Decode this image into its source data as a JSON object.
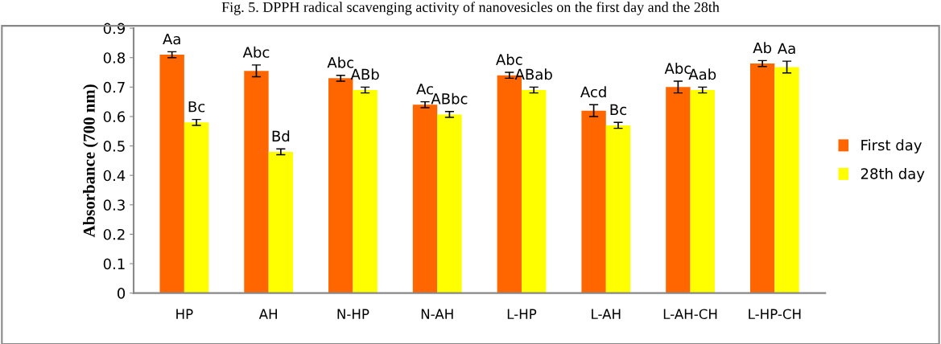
{
  "chart_data": {
    "type": "bar",
    "title": "Fig. 5. DPPH radical scavenging activity of nanovesicles on the first day and the 28th",
    "ylabel": "Absorbance (700 nm)",
    "categories": [
      "HP",
      "AH",
      "N-HP",
      "N-AH",
      "L-HP",
      "L-AH",
      "L-AH-CH",
      "L-HP-CH"
    ],
    "series": [
      {
        "name": "First day",
        "color": "#ff6600",
        "values": [
          0.81,
          0.755,
          0.73,
          0.64,
          0.74,
          0.62,
          0.7,
          0.78
        ],
        "errors": [
          0.01,
          0.02,
          0.01,
          0.01,
          0.01,
          0.02,
          0.02,
          0.01
        ],
        "value_labels": [
          "Aa",
          "Abc",
          "Abc",
          "Ac",
          "Abc",
          "Acd",
          "Abc",
          "Ab"
        ]
      },
      {
        "name": "28th day",
        "color": "#ffff00",
        "values": [
          0.58,
          0.48,
          0.69,
          0.607,
          0.69,
          0.57,
          0.69,
          0.768
        ],
        "errors": [
          0.01,
          0.01,
          0.01,
          0.01,
          0.01,
          0.01,
          0.01,
          0.02
        ],
        "value_labels": [
          "Bc",
          "Bd",
          "ABb",
          "ABbc",
          "ABab",
          "Bc",
          "Aab",
          "Aa"
        ]
      }
    ],
    "ylim": [
      0,
      0.9
    ],
    "yticks": [
      {
        "value": 0,
        "label": "0"
      },
      0.1,
      0.2,
      0.3,
      0.4,
      0.5,
      0.6,
      0.7,
      0.8,
      0.9
    ],
    "grid": false,
    "legend": "right"
  }
}
